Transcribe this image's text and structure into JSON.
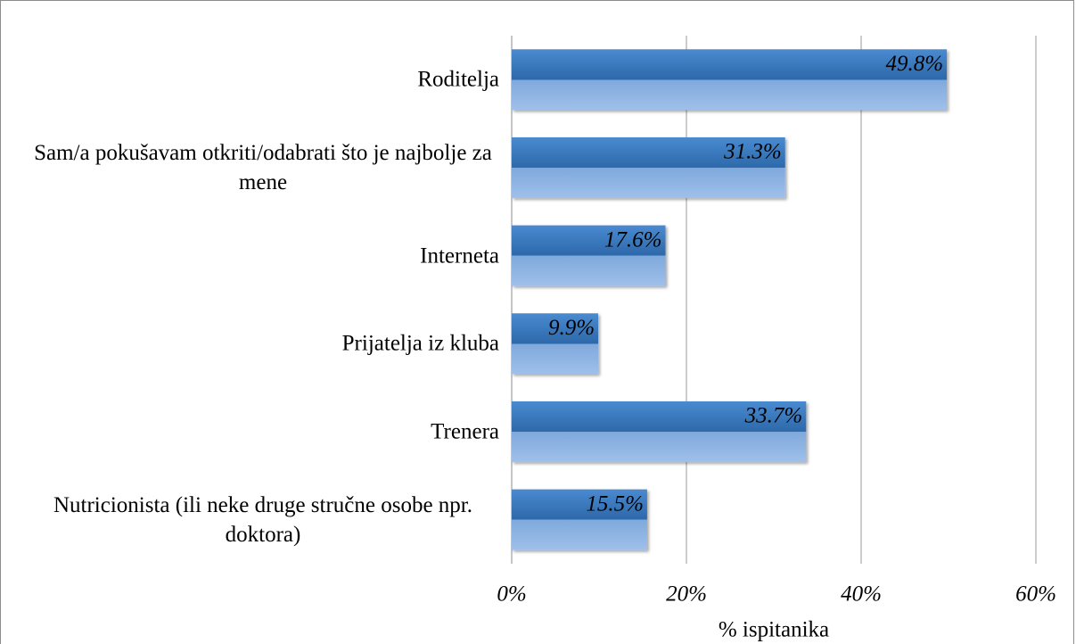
{
  "chart_data": {
    "type": "bar",
    "orientation": "horizontal",
    "categories": [
      "Roditelja",
      "Sam/a pokušavam otkriti/odabrati što je najbolje za mene",
      "Interneta",
      "Prijatelja iz kluba",
      "Trenera",
      "Nutricionista (ili neke druge stručne osobe npr. doktora)"
    ],
    "values": [
      49.8,
      31.3,
      17.6,
      9.9,
      33.7,
      15.5
    ],
    "value_labels": [
      "49.8%",
      "31.3%",
      "17.6%",
      "9.9%",
      "33.7%",
      "15.5%"
    ],
    "color": "#2e6fb5",
    "xlim": [
      0,
      60
    ],
    "xticks": [
      {
        "value": 0,
        "label": "0%"
      },
      {
        "value": 20,
        "label": "20%"
      },
      {
        "value": 40,
        "label": "40%"
      },
      {
        "value": 60,
        "label": "60%"
      }
    ],
    "x_label": "% ispitanika",
    "grid": true
  }
}
